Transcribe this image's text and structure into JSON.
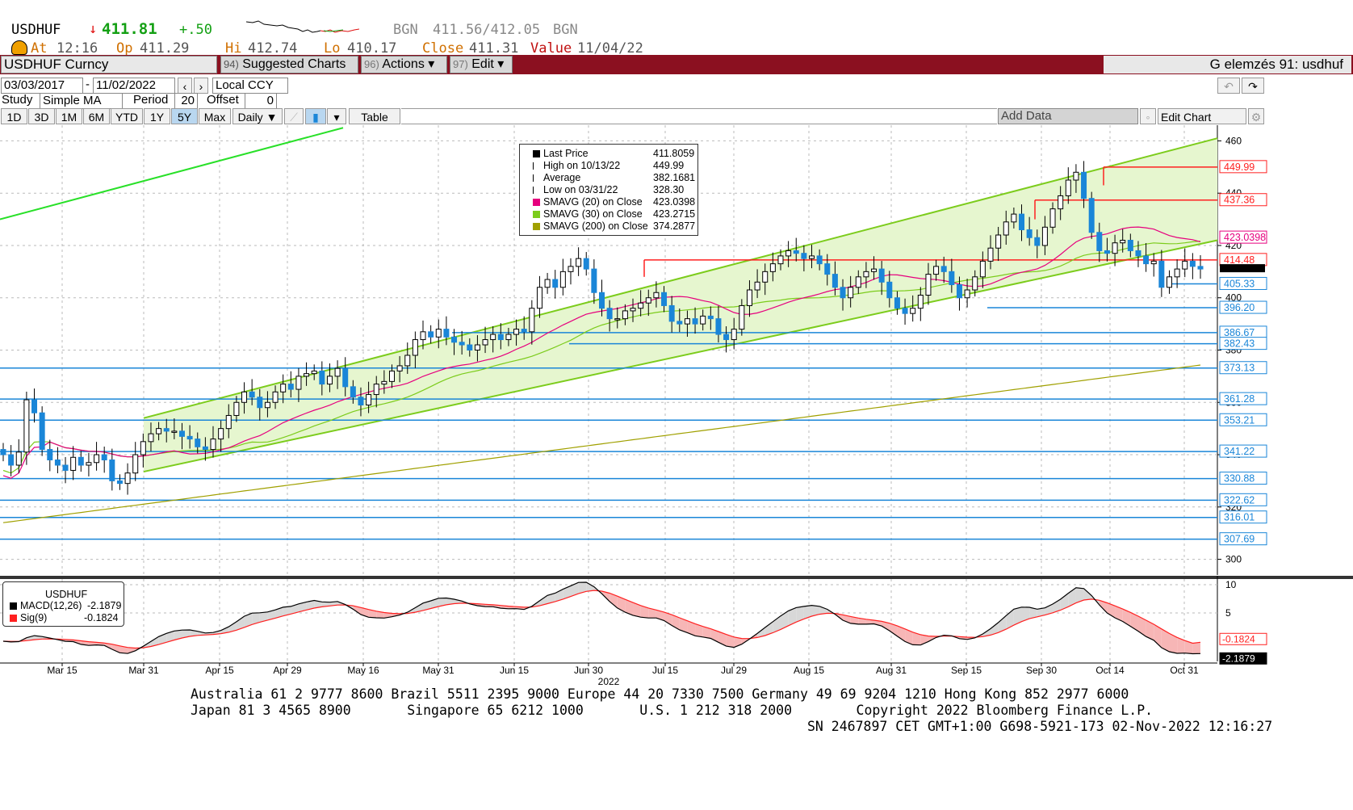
{
  "header": {
    "ticker": "USDHUF",
    "arrow": "↓",
    "last": "411.81",
    "change": "+.50",
    "bid_source": "BGN",
    "bid_ask": "411.56/412.05",
    "ask_source": "BGN",
    "at_label": "At",
    "at_value": "12:16",
    "op_label": "Op",
    "op_value": "411.29",
    "hi_label": "Hi",
    "hi_value": "412.74",
    "lo_label": "Lo",
    "lo_value": "410.17",
    "close_label": "Close",
    "close_value": "411.31",
    "value_label": "Value",
    "value_value": "11/04/22"
  },
  "menu": {
    "security": "USDHUF Curncy",
    "suggested_num": "94)",
    "suggested": "Suggested Charts",
    "actions_num": "96)",
    "actions": "Actions ▾",
    "edit_num": "97)",
    "edit": "Edit ▾",
    "title": "G elemzés 91: usdhuf"
  },
  "controls": {
    "start_date": "03/03/2017",
    "dash": "-",
    "end_date": "11/02/2022",
    "currency": "Local CCY",
    "study_label": "Study",
    "study_value": "Simple MA",
    "period_label": "Period",
    "period_value": "20",
    "offset_label": "Offset",
    "offset_value": "0",
    "ranges": [
      "1D",
      "3D",
      "1M",
      "6M",
      "YTD",
      "1Y",
      "5Y",
      "Max"
    ],
    "frequency": "Daily ▼",
    "table": "Table",
    "add_data": "Add Data",
    "edit_chart": "Edit Chart"
  },
  "legend": {
    "rows": [
      {
        "label": "Last Price",
        "value": "411.8059",
        "color": "#000000"
      },
      {
        "label": "High on 10/13/22",
        "value": "449.99",
        "color": null
      },
      {
        "label": "Average",
        "value": "382.1681",
        "color": null
      },
      {
        "label": "Low on 03/31/22",
        "value": "328.30",
        "color": null
      },
      {
        "label": "SMAVG (20)  on Close",
        "value": "423.0398",
        "color": "#e6007e"
      },
      {
        "label": "SMAVG (30)  on Close",
        "value": "423.2715",
        "color": "#7ccc1c"
      },
      {
        "label": "SMAVG (200)  on Close",
        "value": "374.2877",
        "color": "#a0a000"
      }
    ]
  },
  "macd_legend": {
    "title": "USDHUF",
    "rows": [
      {
        "label": "MACD(12,26)",
        "value": "-2.1879",
        "color": "#000000"
      },
      {
        "label": "Sig(9)",
        "value": "-0.1824",
        "color": "#ff2020"
      }
    ]
  },
  "chart_data": [
    {
      "type": "candlestick",
      "title": "USDHUF",
      "x_tick_labels": [
        "Mar 15",
        "Mar 31",
        "Apr 15",
        "Apr 29",
        "May 16",
        "May 31",
        "Jun 15",
        "Jun 30",
        "Jul 15",
        "Jul 29",
        "Aug 15",
        "Aug 31",
        "Sep 15",
        "Sep 30",
        "Oct 14",
        "Oct 31"
      ],
      "year_label": "2022",
      "y_ticks": [
        300,
        320,
        340,
        360,
        380,
        400,
        420,
        440,
        460
      ],
      "ylim": [
        294,
        466
      ],
      "close_series": [
        340,
        336,
        341,
        361,
        356,
        342,
        338,
        336,
        334,
        339,
        336,
        337,
        340,
        338,
        330,
        329,
        333,
        340,
        345,
        348,
        350,
        349,
        349,
        347,
        346,
        343,
        342,
        346,
        350,
        355,
        360,
        364,
        362,
        358,
        360,
        364,
        367,
        365,
        370,
        371,
        372,
        367,
        370,
        373,
        366,
        362,
        359,
        363,
        367,
        368,
        372,
        374,
        378,
        384,
        387,
        385,
        388,
        385,
        383,
        382,
        380,
        382,
        384,
        386,
        384,
        386,
        388,
        387,
        396,
        404,
        407,
        404,
        410,
        412,
        415,
        411,
        402,
        396,
        392,
        392,
        395,
        396,
        398,
        400,
        402,
        397,
        391,
        390,
        392,
        390,
        393,
        392,
        386,
        384,
        388,
        397,
        403,
        406,
        410,
        413,
        416,
        418,
        417,
        415,
        416,
        413,
        409,
        404,
        400,
        404,
        408,
        410,
        411,
        406,
        400,
        396,
        394,
        396,
        401,
        409,
        412,
        410,
        405,
        400,
        403,
        408,
        414,
        419,
        424,
        429,
        432,
        426,
        423,
        420,
        427,
        434,
        439,
        445,
        448,
        438,
        425,
        418,
        417,
        421,
        422,
        418,
        416,
        413,
        414,
        404,
        408,
        411,
        414,
        412,
        411
      ],
      "indicators": [
        {
          "name": "SMAVG (20) on Close",
          "color": "#e6007e",
          "last": 423.0398
        },
        {
          "name": "SMAVG (30) on Close",
          "color": "#7ccc1c",
          "last": 423.2715
        },
        {
          "name": "SMAVG (200) on Close",
          "color": "#a0a000",
          "last": 374.2877
        }
      ],
      "price_tags": [
        {
          "value": 449.99,
          "label": "449.99",
          "color": "#ff2020"
        },
        {
          "value": 437.36,
          "label": "437.36",
          "color": "#ff2020"
        },
        {
          "value": 423.0398,
          "label": "423.0398",
          "color": "#e6007e"
        },
        {
          "value": 414.48,
          "label": "414.48",
          "color": "#ff2020"
        },
        {
          "value": 405.33,
          "label": "405.33",
          "color": "#1a86d8"
        },
        {
          "value": 396.2,
          "label": "396.20",
          "color": "#1a86d8"
        },
        {
          "value": 386.67,
          "label": "386.67",
          "color": "#1a86d8"
        },
        {
          "value": 382.43,
          "label": "382.43",
          "color": "#1a86d8"
        },
        {
          "value": 373.13,
          "label": "373.13",
          "color": "#1a86d8"
        },
        {
          "value": 361.28,
          "label": "361.28",
          "color": "#1a86d8"
        },
        {
          "value": 353.21,
          "label": "353.21",
          "color": "#1a86d8"
        },
        {
          "value": 341.22,
          "label": "341.22",
          "color": "#1a86d8"
        },
        {
          "value": 330.88,
          "label": "330.88",
          "color": "#1a86d8"
        },
        {
          "value": 322.62,
          "label": "322.62",
          "color": "#1a86d8"
        },
        {
          "value": 316.01,
          "label": "316.01",
          "color": "#1a86d8"
        },
        {
          "value": 307.69,
          "label": "307.69",
          "color": "#1a86d8"
        }
      ]
    },
    {
      "type": "line",
      "title": "MACD",
      "y_ticks": [
        5,
        10
      ],
      "ylim": [
        -3,
        11
      ],
      "series": [
        {
          "name": "MACD(12,26)",
          "last": -2.1879,
          "color": "#000000"
        },
        {
          "name": "Sig(9)",
          "last": -0.1824,
          "color": "#ff2020"
        }
      ],
      "tags": [
        {
          "value": -0.1824,
          "label": "-0.1824",
          "color": "#ff2020"
        },
        {
          "value": -2.1879,
          "label": "-2.1879",
          "color": "#000000"
        }
      ]
    }
  ],
  "footer": {
    "line1": "Australia 61 2 9777 8600 Brazil 5511 2395 9000 Europe 44 20 7330 7500 Germany 49 69 9204 1210 Hong Kong 852 2977 6000",
    "line2": "Japan 81 3 4565 8900       Singapore 65 6212 1000       U.S. 1 212 318 2000        Copyright 2022 Bloomberg Finance L.P.",
    "line3": "SN 2467897 CET  GMT+1:00 G698-5921-173 02-Nov-2022 12:16:27"
  }
}
